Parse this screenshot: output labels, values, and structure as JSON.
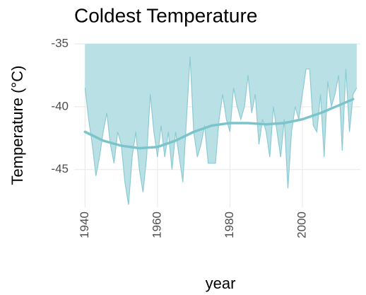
{
  "chart_data": {
    "type": "area",
    "title": "Coldest Temperature",
    "x_label": "year",
    "y_label": "Temperature (°C)",
    "x": [
      1940,
      1941,
      1942,
      1943,
      1944,
      1945,
      1946,
      1947,
      1948,
      1949,
      1950,
      1951,
      1952,
      1953,
      1954,
      1955,
      1956,
      1957,
      1958,
      1959,
      1960,
      1961,
      1962,
      1963,
      1964,
      1965,
      1966,
      1967,
      1968,
      1969,
      1970,
      1971,
      1972,
      1973,
      1974,
      1975,
      1976,
      1977,
      1978,
      1979,
      1980,
      1981,
      1982,
      1983,
      1984,
      1985,
      1986,
      1987,
      1988,
      1989,
      1990,
      1991,
      1992,
      1993,
      1994,
      1995,
      1996,
      1997,
      1998,
      1999,
      2000,
      2001,
      2002,
      2003,
      2004,
      2005,
      2006,
      2007,
      2008,
      2009,
      2010,
      2011,
      2012,
      2013,
      2014,
      2015
    ],
    "series": [
      {
        "color": "#8ccbd3",
        "fill": "#b9e0e5",
        "values": [
          -38.5,
          -41,
          -43,
          -45.5,
          -44,
          -42,
          -40.5,
          -43,
          -44.5,
          -42,
          -43,
          -46,
          -47.8,
          -44,
          -42,
          -45,
          -46.8,
          -44,
          -39,
          -42,
          -44,
          -41.5,
          -44,
          -42,
          -45,
          -42,
          -44,
          -46,
          -41,
          -36,
          -42,
          -44,
          -43,
          -41.5,
          -44.5,
          -44.5,
          -44.5,
          -41,
          -39,
          -41,
          -42,
          -38.5,
          -40,
          -41,
          -40,
          -37.5,
          -40.5,
          -39,
          -43,
          -41,
          -42,
          -44,
          -40,
          -42,
          -44,
          -41,
          -46.5,
          -42,
          -40,
          -41,
          -39,
          -37,
          -37,
          -41.5,
          -42,
          -39,
          -44,
          -38,
          -40,
          -39,
          -37.5,
          -43.5,
          -37,
          -42,
          -39,
          -38.5
        ]
      },
      {
        "color": "#7cc4cc",
        "x": [
          1940,
          1945,
          1950,
          1955,
          1960,
          1965,
          1970,
          1975,
          1980,
          1985,
          1990,
          1995,
          2000,
          2005,
          2010,
          2014
        ],
        "values": [
          -42,
          -42.7,
          -43.1,
          -43.3,
          -43.2,
          -42.7,
          -42,
          -41.5,
          -41.3,
          -41.3,
          -41.4,
          -41.3,
          -41,
          -40.5,
          -39.9,
          -39.4
        ]
      }
    ],
    "xlim": [
      1937,
      2016
    ],
    "ylim": [
      -48,
      -35
    ],
    "xticks": [
      1940,
      1960,
      1980,
      2000
    ],
    "yticks": [
      -35,
      -40,
      -45
    ],
    "grid": true
  }
}
